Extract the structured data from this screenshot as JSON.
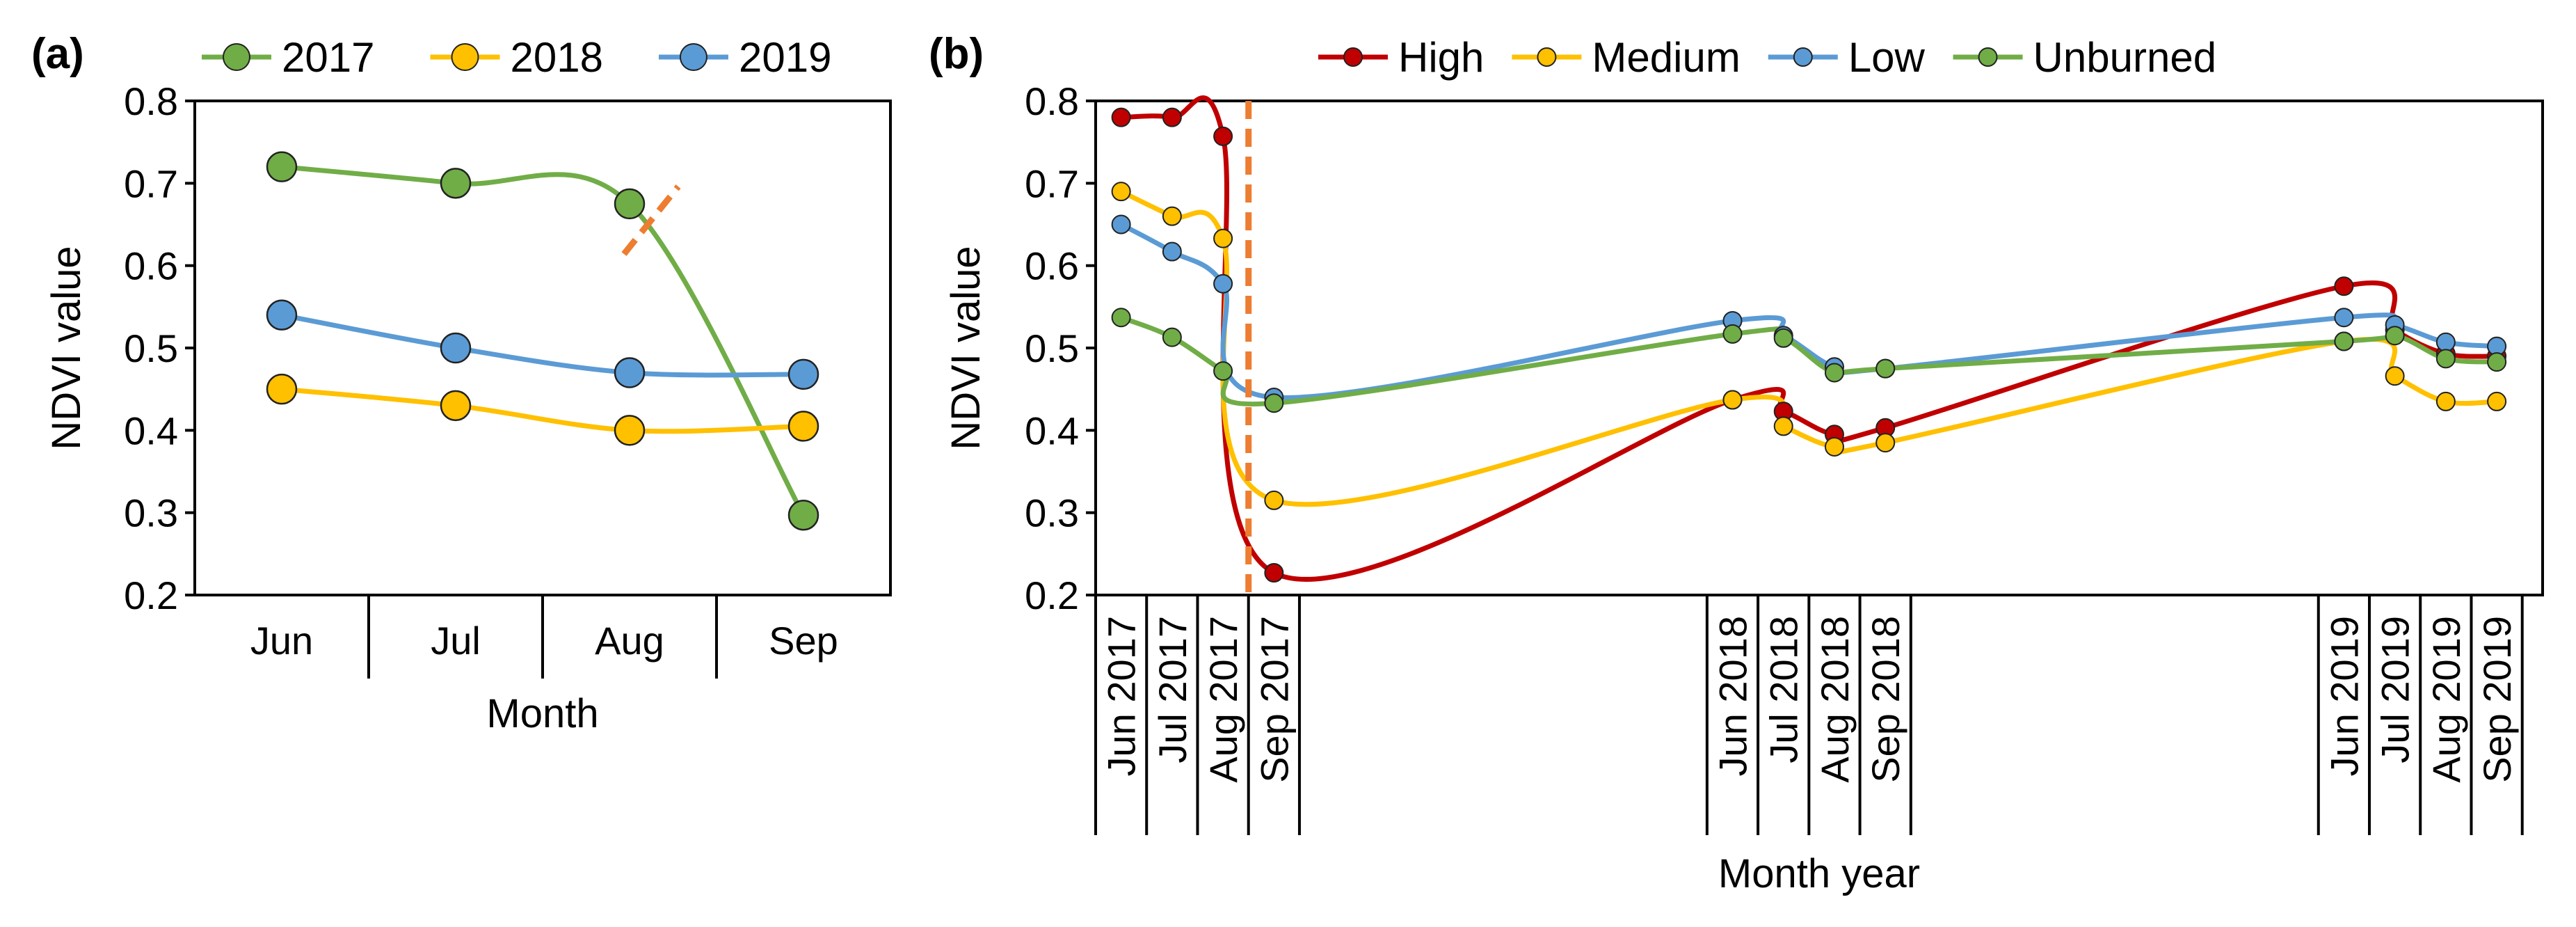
{
  "chart_data": [
    {
      "panel": "(a)",
      "type": "line",
      "categories": [
        "Jun",
        "Jul",
        "Aug",
        "Sep"
      ],
      "series": [
        {
          "name": "2017",
          "color": "#70AD47",
          "values": [
            0.72,
            0.7,
            0.675,
            0.297
          ]
        },
        {
          "name": "2018",
          "color": "#FFC000",
          "values": [
            0.45,
            0.43,
            0.4,
            0.405
          ]
        },
        {
          "name": "2019",
          "color": "#5B9BD5",
          "values": [
            0.54,
            0.5,
            0.47,
            0.468
          ]
        }
      ],
      "xlabel": "Month",
      "ylabel": "NDVI value",
      "ylim": [
        0.2,
        0.8
      ],
      "yticks": [
        "0.2",
        "0.3",
        "0.4",
        "0.5",
        "0.6",
        "0.7",
        "0.8"
      ],
      "annotation": "fire-cutoff-between-Aug-and-Sep",
      "legend": "top"
    },
    {
      "panel": "(b)",
      "type": "line",
      "categories": [
        "Jun 2017",
        "Jul 2017",
        "Aug 2017",
        "Sep 2017",
        "Jun 2018",
        "Jul 2018",
        "Aug 2018",
        "Sep 2018",
        "Jun 2019",
        "Jul 2019",
        "Aug 2019",
        "Sep 2019"
      ],
      "series": [
        {
          "name": "High",
          "color": "#C00000",
          "values": [
            0.78,
            0.78,
            0.757,
            0.227,
            0.437,
            0.423,
            0.395,
            0.403,
            0.575,
            0.522,
            0.493,
            0.49
          ]
        },
        {
          "name": "Medium",
          "color": "#FFC000",
          "values": [
            0.69,
            0.66,
            0.633,
            0.315,
            0.437,
            0.405,
            0.38,
            0.385,
            0.508,
            0.466,
            0.435,
            0.435
          ]
        },
        {
          "name": "Low",
          "color": "#5B9BD5",
          "values": [
            0.65,
            0.617,
            0.578,
            0.44,
            0.533,
            0.515,
            0.477,
            0.475,
            0.537,
            0.528,
            0.507,
            0.502
          ]
        },
        {
          "name": "Unburned",
          "color": "#70AD47",
          "values": [
            0.537,
            0.513,
            0.472,
            0.433,
            0.517,
            0.512,
            0.47,
            0.475,
            0.508,
            0.515,
            0.487,
            0.483
          ]
        }
      ],
      "xlabel": "Month year",
      "ylabel": "NDVI value",
      "ylim": [
        0.2,
        0.8
      ],
      "yticks": [
        "0.2",
        "0.3",
        "0.4",
        "0.5",
        "0.6",
        "0.7",
        "0.8"
      ],
      "annotation": "fire-cutoff-between-Aug-2017-and-Sep-2017",
      "legend": "top"
    }
  ]
}
